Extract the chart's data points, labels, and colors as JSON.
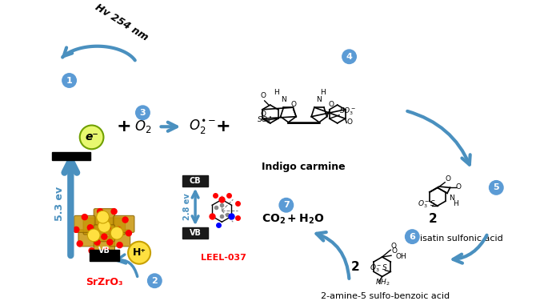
{
  "bg_color": "#ffffff",
  "arrow_color": "#4A90BF",
  "step_circle_color": "#5B9BD5",
  "hv_text": "Hv 254 nm",
  "e_label": "e⁻",
  "srzro3_label": "SrZrO₃",
  "ev_label": "5.3 ev",
  "ev2_label": "2.8 ev",
  "cb_label": "CB",
  "vb_label": "VB",
  "vb2_label": "VB",
  "h_label": "H⁺",
  "leel_label": "LEEL-037",
  "ic_label": "Indigo carmine",
  "isatin_label": "isatin sulfonic acid",
  "aminobenzoic_label": "2-amine-5 sulfo-benzoic acid",
  "co2_label": "CO₂ + H₂O",
  "steps": [
    "1",
    "2",
    "3",
    "4",
    "5",
    "6",
    "7"
  ]
}
